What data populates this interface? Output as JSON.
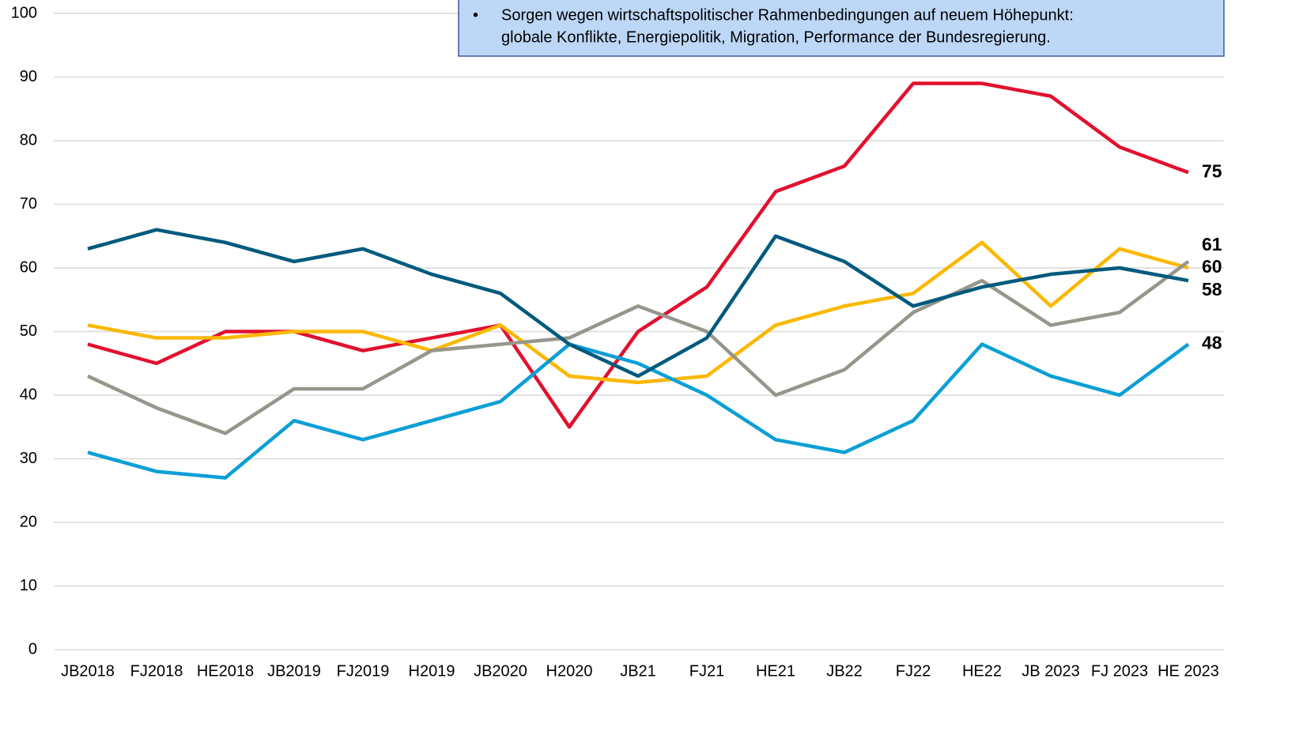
{
  "chart_data": {
    "type": "line",
    "annotation": {
      "bullet": "•",
      "lines": [
        "Sorgen wegen wirtschaftspolitischer Rahmenbedingungen auf neuem Höhepunkt:",
        "globale Konflikte, Energiepolitik, Migration, Performance der Bundesregierung."
      ]
    },
    "categories": [
      "JB2018",
      "FJ2018",
      "HE2018",
      "JB2019",
      "FJ2019",
      "H2019",
      "JB2020",
      "H2020",
      "JB21",
      "FJ21",
      "HE21",
      "JB22",
      "FJ22",
      "HE22",
      "JB 2023",
      "FJ 2023",
      "HE 2023"
    ],
    "series": [
      {
        "color": "#e2102e",
        "values": [
          48,
          45,
          50,
          50,
          47,
          49,
          51,
          35,
          50,
          57,
          72,
          76,
          89,
          89,
          87,
          79,
          75
        ]
      },
      {
        "color": "#fbb800",
        "values": [
          51,
          49,
          49,
          50,
          50,
          47,
          51,
          43,
          42,
          43,
          51,
          54,
          56,
          64,
          54,
          63,
          60
        ]
      },
      {
        "color": "#96968c",
        "values": [
          43,
          38,
          34,
          41,
          41,
          47,
          48,
          49,
          54,
          50,
          40,
          44,
          53,
          58,
          51,
          53,
          61
        ]
      },
      {
        "color": "#0a9fd6",
        "values": [
          31,
          28,
          27,
          36,
          33,
          36,
          39,
          48,
          45,
          40,
          33,
          31,
          36,
          48,
          43,
          40,
          48
        ]
      },
      {
        "color": "#005a7d",
        "values": [
          63,
          66,
          64,
          61,
          63,
          59,
          56,
          48,
          43,
          49,
          65,
          61,
          54,
          57,
          59,
          60,
          58
        ]
      }
    ],
    "ylim": [
      0,
      100
    ],
    "yticks": [
      0,
      10,
      20,
      30,
      40,
      50,
      60,
      70,
      80,
      90,
      100
    ],
    "grid": true
  }
}
